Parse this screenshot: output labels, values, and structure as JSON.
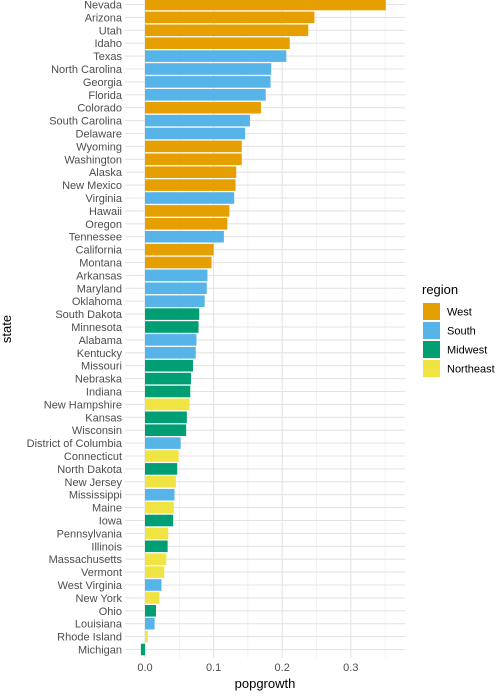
{
  "chart_data": {
    "type": "bar",
    "orientation": "horizontal",
    "xlabel": "popgrowth",
    "ylabel": "state",
    "xlim": [
      -0.015,
      0.37
    ],
    "x_ticks": [
      0.0,
      0.1,
      0.2,
      0.3
    ],
    "x_tick_labels": [
      "0.0",
      "0.1",
      "0.2",
      "0.3"
    ],
    "grid": true,
    "legend": {
      "title": "region",
      "position": "right",
      "entries": [
        {
          "name": "West",
          "color": "#E69F00"
        },
        {
          "name": "South",
          "color": "#56B4E9"
        },
        {
          "name": "Midwest",
          "color": "#009E73"
        },
        {
          "name": "Northeast",
          "color": "#F0E442"
        }
      ]
    },
    "bars": [
      {
        "state": "Nevada",
        "value": 0.351,
        "region": "West"
      },
      {
        "state": "Arizona",
        "value": 0.247,
        "region": "West"
      },
      {
        "state": "Utah",
        "value": 0.238,
        "region": "West"
      },
      {
        "state": "Idaho",
        "value": 0.211,
        "region": "West"
      },
      {
        "state": "Texas",
        "value": 0.206,
        "region": "South"
      },
      {
        "state": "North Carolina",
        "value": 0.184,
        "region": "South"
      },
      {
        "state": "Georgia",
        "value": 0.183,
        "region": "South"
      },
      {
        "state": "Florida",
        "value": 0.176,
        "region": "South"
      },
      {
        "state": "Colorado",
        "value": 0.169,
        "region": "West"
      },
      {
        "state": "South Carolina",
        "value": 0.153,
        "region": "South"
      },
      {
        "state": "Delaware",
        "value": 0.146,
        "region": "South"
      },
      {
        "state": "Wyoming",
        "value": 0.141,
        "region": "West"
      },
      {
        "state": "Washington",
        "value": 0.141,
        "region": "West"
      },
      {
        "state": "Alaska",
        "value": 0.133,
        "region": "West"
      },
      {
        "state": "New Mexico",
        "value": 0.132,
        "region": "West"
      },
      {
        "state": "Virginia",
        "value": 0.13,
        "region": "South"
      },
      {
        "state": "Hawaii",
        "value": 0.123,
        "region": "West"
      },
      {
        "state": "Oregon",
        "value": 0.12,
        "region": "West"
      },
      {
        "state": "Tennessee",
        "value": 0.115,
        "region": "South"
      },
      {
        "state": "California",
        "value": 0.1,
        "region": "West"
      },
      {
        "state": "Montana",
        "value": 0.097,
        "region": "West"
      },
      {
        "state": "Arkansas",
        "value": 0.091,
        "region": "South"
      },
      {
        "state": "Maryland",
        "value": 0.09,
        "region": "South"
      },
      {
        "state": "Oklahoma",
        "value": 0.087,
        "region": "South"
      },
      {
        "state": "South Dakota",
        "value": 0.079,
        "region": "Midwest"
      },
      {
        "state": "Minnesota",
        "value": 0.078,
        "region": "Midwest"
      },
      {
        "state": "Alabama",
        "value": 0.075,
        "region": "South"
      },
      {
        "state": "Kentucky",
        "value": 0.074,
        "region": "South"
      },
      {
        "state": "Missouri",
        "value": 0.07,
        "region": "Midwest"
      },
      {
        "state": "Nebraska",
        "value": 0.067,
        "region": "Midwest"
      },
      {
        "state": "Indiana",
        "value": 0.066,
        "region": "Midwest"
      },
      {
        "state": "New Hampshire",
        "value": 0.065,
        "region": "Northeast"
      },
      {
        "state": "Kansas",
        "value": 0.061,
        "region": "Midwest"
      },
      {
        "state": "Wisconsin",
        "value": 0.06,
        "region": "Midwest"
      },
      {
        "state": "District of Columbia",
        "value": 0.052,
        "region": "South"
      },
      {
        "state": "Connecticut",
        "value": 0.049,
        "region": "Northeast"
      },
      {
        "state": "North Dakota",
        "value": 0.047,
        "region": "Midwest"
      },
      {
        "state": "New Jersey",
        "value": 0.045,
        "region": "Northeast"
      },
      {
        "state": "Mississippi",
        "value": 0.043,
        "region": "South"
      },
      {
        "state": "Maine",
        "value": 0.042,
        "region": "Northeast"
      },
      {
        "state": "Iowa",
        "value": 0.041,
        "region": "Midwest"
      },
      {
        "state": "Pennsylvania",
        "value": 0.034,
        "region": "Northeast"
      },
      {
        "state": "Illinois",
        "value": 0.033,
        "region": "Midwest"
      },
      {
        "state": "Massachusetts",
        "value": 0.031,
        "region": "Northeast"
      },
      {
        "state": "Vermont",
        "value": 0.028,
        "region": "Northeast"
      },
      {
        "state": "West Virginia",
        "value": 0.024,
        "region": "South"
      },
      {
        "state": "New York",
        "value": 0.021,
        "region": "Northeast"
      },
      {
        "state": "Ohio",
        "value": 0.016,
        "region": "Midwest"
      },
      {
        "state": "Louisiana",
        "value": 0.014,
        "region": "South"
      },
      {
        "state": "Rhode Island",
        "value": 0.004,
        "region": "Northeast"
      },
      {
        "state": "Michigan",
        "value": -0.006,
        "region": "Midwest"
      }
    ]
  }
}
